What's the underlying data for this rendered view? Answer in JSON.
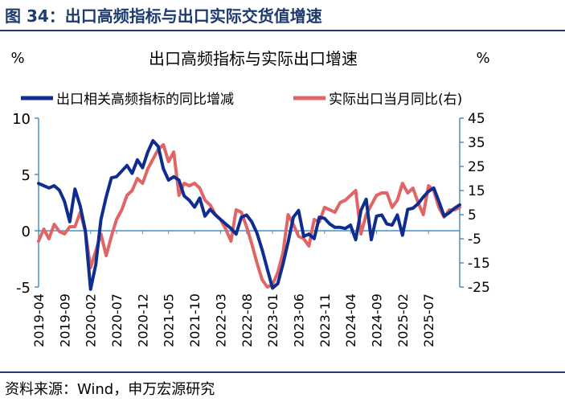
{
  "figure_title": "图 34：出口高频指标与出口实际交货值增速",
  "source": "资料来源：Wind，申万宏源研究",
  "colors": {
    "left_series": "#0f2d8f",
    "right_series": "#e06666",
    "axis": "#4a90c4",
    "text": "#000000",
    "title": "#1f3a6e"
  },
  "chart_data": {
    "type": "line",
    "title": "出口高频指标与实际出口增速",
    "left_unit": "%",
    "right_unit": "%",
    "left_axis": {
      "min": -5,
      "max": 10,
      "ticks": [
        10,
        5,
        0,
        -5
      ]
    },
    "right_axis": {
      "min": -25,
      "max": 45,
      "ticks": [
        45,
        35,
        25,
        15,
        5,
        -5,
        -15,
        -25
      ]
    },
    "x_tick_labels": [
      "2019-04",
      "2019-09",
      "2020-02",
      "2020-07",
      "2020-12",
      "2021-05",
      "2021-10",
      "2022-03",
      "2022-08",
      "2023-01",
      "2023-06",
      "2023-11",
      "2024-04",
      "2024-09",
      "2025-02",
      "2025-07"
    ],
    "x_start": "2019-04",
    "x_end": "2025-07",
    "series": [
      {
        "name": "出口相关高频指标的同比增减",
        "axis": "left",
        "values": [
          4.2,
          4.0,
          3.8,
          4.0,
          3.6,
          2.6,
          0.8,
          3.7,
          2.2,
          0,
          -5.2,
          -3,
          1,
          3,
          4.7,
          4.8,
          5.3,
          5.8,
          5.1,
          6.3,
          5.6,
          7,
          8,
          7.5,
          5.5,
          4.5,
          4.8,
          4.5,
          3.1,
          2.7,
          2.1,
          2.9,
          1.3,
          1.9,
          1.4,
          1.0,
          0.6,
          0.2,
          -0.3,
          1.2,
          1.4,
          0.8,
          -0.2,
          -1.7,
          -3.4,
          -5.1,
          -4.7,
          -3,
          -1,
          1.2,
          1.8,
          -0.5,
          -0.3,
          -0.7,
          1.2,
          1.1,
          0.6,
          0.3,
          0.3,
          0.2,
          0.5,
          -0.8,
          1.8,
          2.8,
          -0.8,
          1.3,
          1.4,
          0.6,
          0.5,
          1.4,
          -0.4,
          1.9,
          2.0,
          2.4,
          3.0,
          3.5,
          3.8,
          2.6,
          1.3,
          1.6,
          2.0,
          2.3
        ]
      },
      {
        "name": "实际出口当月同比(右)",
        "axis": "right",
        "values": [
          -6,
          -1,
          -5,
          1,
          -2,
          -3,
          0,
          0,
          6,
          -2,
          -17,
          -10,
          -3,
          -12,
          -4,
          3,
          7,
          13,
          15,
          20,
          18,
          24,
          28,
          32,
          34,
          27,
          31,
          13,
          18,
          17,
          18,
          16,
          11,
          9,
          5,
          3,
          -1,
          -6,
          7,
          6,
          0,
          -7,
          -15,
          -22,
          -25,
          -24,
          -19,
          -11,
          5,
          1,
          -4,
          -5,
          -8,
          3,
          2,
          8,
          7,
          6,
          10,
          11,
          13,
          15,
          -3,
          5,
          9,
          13,
          14,
          14,
          8,
          11,
          18,
          14,
          16,
          10,
          5,
          17,
          15,
          8,
          4,
          7,
          7,
          8
        ]
      }
    ]
  }
}
